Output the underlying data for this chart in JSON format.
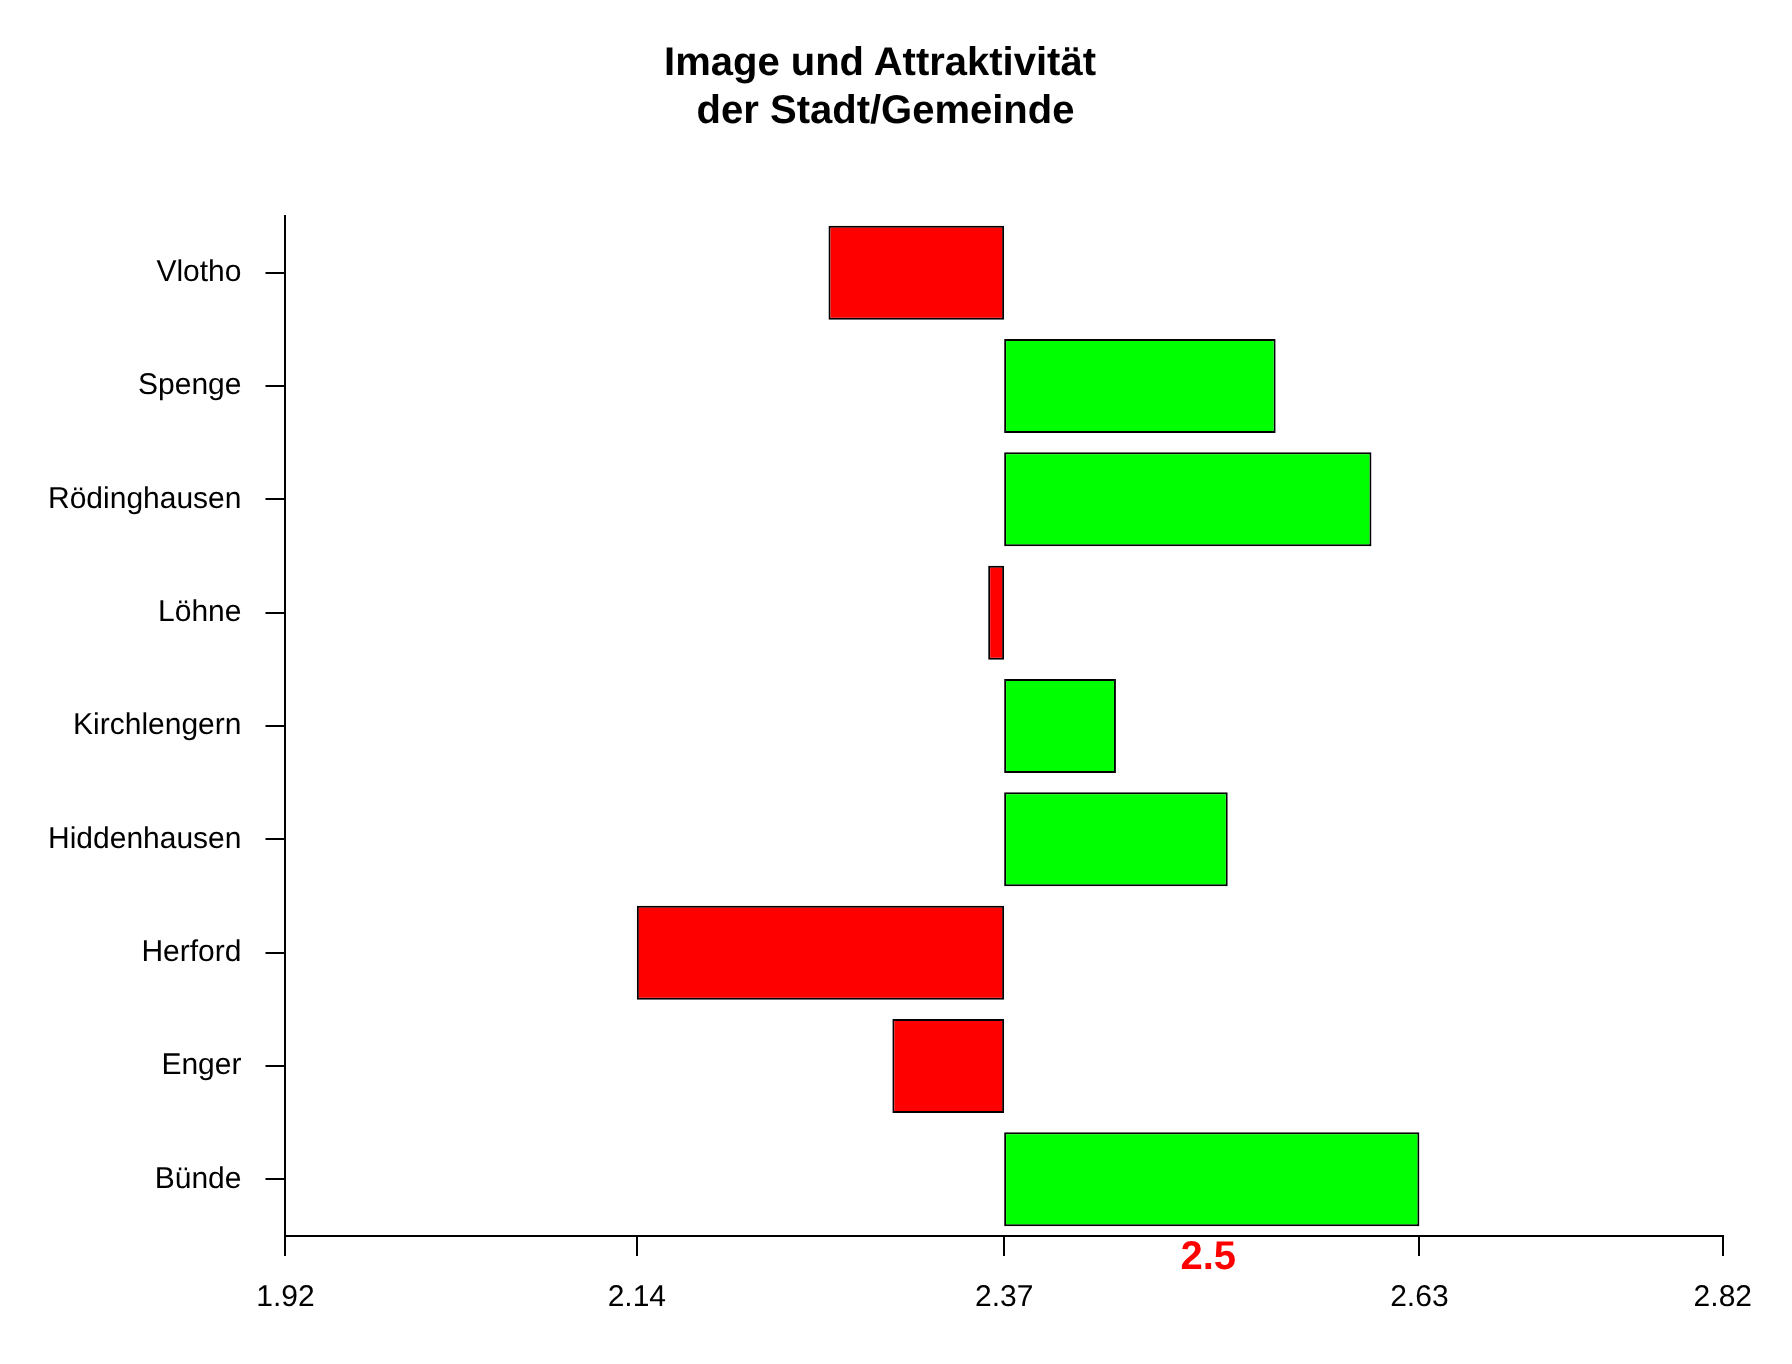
{
  "chart_data": {
    "type": "bar",
    "orientation": "horizontal",
    "title": "Image und Attraktivität\n der Stadt/Gemeinde",
    "categories": [
      "Vlotho",
      "Spenge",
      "Rödinghausen",
      "Löhne",
      "Kirchlengern",
      "Hiddenhausen",
      "Herford",
      "Enger",
      "Bünde"
    ],
    "values": [
      -0.11,
      0.17,
      0.23,
      -0.01,
      0.07,
      0.14,
      -0.23,
      -0.07,
      0.26
    ],
    "base": [
      2.37,
      2.37,
      2.37,
      2.37,
      2.37,
      2.37,
      2.37,
      2.37,
      2.37
    ],
    "colors": [
      "#ff0000",
      "#00ff00",
      "#00ff00",
      "#ff0000",
      "#00ff00",
      "#00ff00",
      "#ff0000",
      "#ff0000",
      "#00ff00"
    ],
    "xlim": [
      1.92,
      2.82
    ],
    "xticks": [
      1.92,
      2.14,
      2.37,
      2.63,
      2.82
    ],
    "annotations": [
      "2.5"
    ],
    "grid": false,
    "legend": false
  }
}
